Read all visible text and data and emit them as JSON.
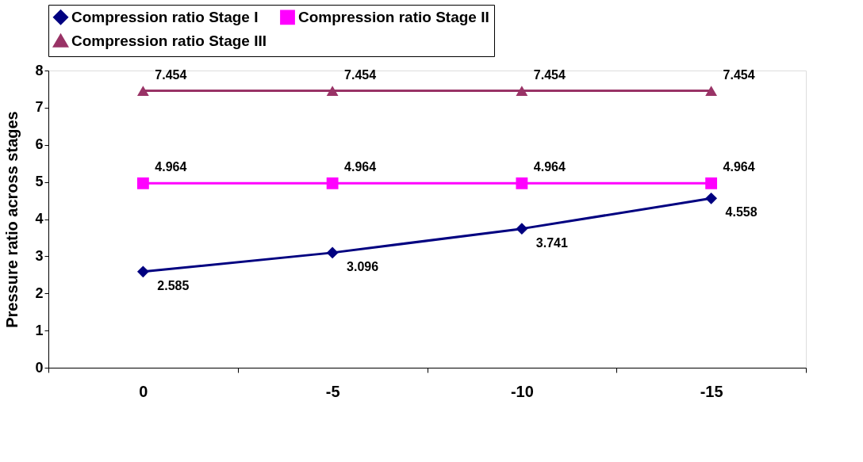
{
  "chart_data": {
    "type": "line",
    "ylabel": "Pressure ratio across stages",
    "categories": [
      "0",
      "-5",
      "-10",
      "-15"
    ],
    "series": [
      {
        "name": "Compression ratio Stage I",
        "color": "#000080",
        "marker": "diamond",
        "values": [
          2.585,
          3.096,
          3.741,
          4.558
        ]
      },
      {
        "name": "Compression ratio Stage II",
        "color": "#ff00ff",
        "marker": "square",
        "values": [
          4.964,
          4.964,
          4.964,
          4.964
        ]
      },
      {
        "name": "Compression ratio Stage III",
        "color": "#993366",
        "marker": "triangle",
        "values": [
          7.454,
          7.454,
          7.454,
          7.454
        ]
      }
    ],
    "ylim": [
      0,
      8
    ],
    "yticks": [
      0,
      1,
      2,
      3,
      4,
      5,
      6,
      7,
      8
    ],
    "grid": false,
    "legend": "top",
    "data_labels": true,
    "line_style": "solid"
  }
}
